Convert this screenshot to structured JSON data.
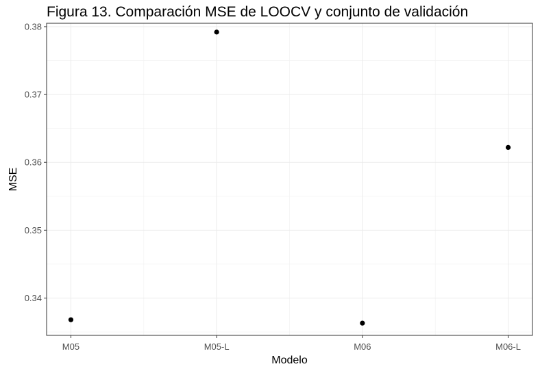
{
  "chart_data": {
    "type": "scatter",
    "title": "Figura 13. Comparación MSE de LOOCV y conjunto de validación",
    "xlabel": "Modelo",
    "ylabel": "MSE",
    "categories": [
      "M05",
      "M05-L",
      "M06",
      "M06-L"
    ],
    "values": [
      0.3368,
      0.3792,
      0.3363,
      0.3622
    ],
    "ylim": [
      0.3345,
      0.3805
    ],
    "yticks": [
      "0.34",
      "0.35",
      "0.36",
      "0.37",
      "0.38"
    ],
    "grid": true,
    "legend": "none",
    "colors": {
      "point": "#000000",
      "grid_major": "#ebebeb",
      "grid_minor": "#f2f2f2",
      "panel_border": "#333333",
      "tick_text": "#4d4d4d"
    }
  }
}
